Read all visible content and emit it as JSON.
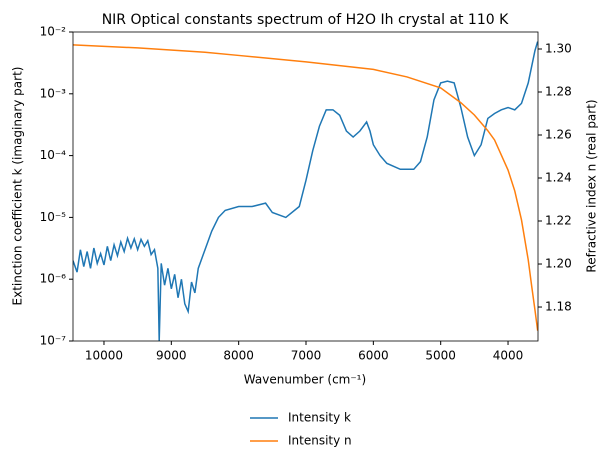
{
  "chart_data": {
    "type": "line",
    "title": "NIR Optical constants spectrum of H2O Ih crystal at 110 K",
    "x_label": "Wavenumber (cm⁻¹)",
    "y_label": "Extinction coefficient k (imaginary part)",
    "y2_label": "Refractive index n (real part)",
    "xlim": [
      10460,
      3555
    ],
    "xticks": [
      10000,
      9000,
      8000,
      7000,
      6000,
      5000,
      4000
    ],
    "ylim": [
      1e-07,
      0.01
    ],
    "y_log": true,
    "yticks": [
      {
        "value": 1e-07,
        "label": "10⁻⁷"
      },
      {
        "value": 1e-06,
        "label": "10⁻⁶"
      },
      {
        "value": 1e-05,
        "label": "10⁻⁵"
      },
      {
        "value": 0.0001,
        "label": "10⁻⁴"
      },
      {
        "value": 0.001,
        "label": "10⁻³"
      },
      {
        "value": 0.01,
        "label": "10⁻²"
      }
    ],
    "y2lim": [
      1.1642,
      1.3079
    ],
    "y2ticks": [
      1.18,
      {
        "value": 1.2,
        "label": "1.20"
      },
      1.22,
      1.24,
      1.26,
      1.28,
      {
        "value": 1.3,
        "label": "1.30"
      }
    ],
    "legend": "bottom",
    "series": [
      {
        "name": "Intensity k",
        "color": "#1f77b4",
        "x": [
          10460,
          10400,
          10350,
          10300,
          10250,
          10200,
          10150,
          10100,
          10050,
          10000,
          9950,
          9900,
          9850,
          9800,
          9750,
          9700,
          9650,
          9600,
          9550,
          9500,
          9450,
          9400,
          9350,
          9300,
          9250,
          9200,
          9180,
          9150,
          9100,
          9050,
          9000,
          8950,
          8900,
          8850,
          8800,
          8750,
          8700,
          8650,
          8600,
          8500,
          8400,
          8300,
          8200,
          8000,
          7800,
          7600,
          7500,
          7300,
          7100,
          7000,
          6900,
          6800,
          6700,
          6600,
          6500,
          6400,
          6300,
          6200,
          6100,
          6050,
          6000,
          5900,
          5800,
          5600,
          5400,
          5300,
          5200,
          5100,
          5000,
          4900,
          4800,
          4700,
          4600,
          4500,
          4400,
          4300,
          4200,
          4100,
          4000,
          3900,
          3800,
          3700,
          3600,
          3560
        ],
        "values": [
          2e-06,
          1.3e-06,
          3e-06,
          1.6e-06,
          2.8e-06,
          1.5e-06,
          3.2e-06,
          1.8e-06,
          2.6e-06,
          1.7e-06,
          3.4e-06,
          2e-06,
          3.6e-06,
          2.4e-06,
          4e-06,
          2.8e-06,
          4.6e-06,
          3.2e-06,
          4.5e-06,
          3e-06,
          4.4e-06,
          3.4e-06,
          4.2e-06,
          2.5e-06,
          3e-06,
          1.5e-06,
          1e-07,
          1.8e-06,
          8e-07,
          1.5e-06,
          7e-07,
          1.2e-06,
          5e-07,
          1e-06,
          4e-07,
          3e-07,
          9e-07,
          6e-07,
          1.5e-06,
          3e-06,
          6e-06,
          1e-05,
          1.3e-05,
          1.5e-05,
          1.5e-05,
          1.7e-05,
          1.2e-05,
          1e-05,
          1.5e-05,
          4e-05,
          0.00012,
          0.0003,
          0.00055,
          0.00055,
          0.00045,
          0.00025,
          0.0002,
          0.00025,
          0.00035,
          0.00025,
          0.00015,
          0.0001,
          7.5e-05,
          6e-05,
          6e-05,
          8e-05,
          0.0002,
          0.0008,
          0.0015,
          0.0016,
          0.0015,
          0.0006,
          0.0002,
          0.0001,
          0.00015,
          0.0004,
          0.00048,
          0.00055,
          0.0006,
          0.00055,
          0.0007,
          0.0015,
          0.005,
          0.007
        ]
      },
      {
        "name": "Intensity n",
        "color": "#ff7f0e",
        "axis": "y2",
        "x": [
          10460,
          9500,
          8500,
          8000,
          7000,
          6000,
          5500,
          5000,
          4700,
          4500,
          4300,
          4200,
          4000,
          3900,
          3800,
          3700,
          3650,
          3600,
          3560
        ],
        "values": [
          1.3019,
          1.3005,
          1.2985,
          1.297,
          1.294,
          1.2905,
          1.287,
          1.2819,
          1.275,
          1.2693,
          1.262,
          1.2577,
          1.2437,
          1.234,
          1.2205,
          1.2019,
          1.19,
          1.1786,
          1.169
        ]
      }
    ]
  }
}
